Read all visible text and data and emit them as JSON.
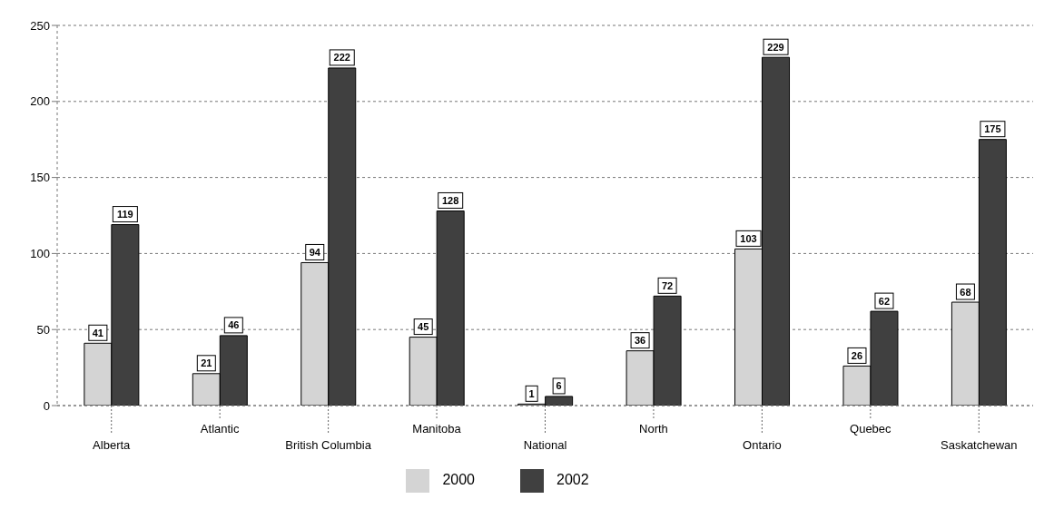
{
  "chart_data": {
    "type": "bar",
    "categories": [
      "Alberta",
      "Atlantic",
      "British Columbia",
      "Manitoba",
      "National",
      "North",
      "Ontario",
      "Quebec",
      "Saskatchewan"
    ],
    "series": [
      {
        "name": "2000",
        "color": "#d4d4d4",
        "values": [
          41,
          21,
          94,
          45,
          1,
          36,
          103,
          26,
          68
        ]
      },
      {
        "name": "2002",
        "color": "#404040",
        "values": [
          119,
          46,
          222,
          128,
          6,
          72,
          229,
          62,
          175
        ]
      }
    ],
    "ylim": [
      0,
      250
    ],
    "yticks": [
      0,
      50,
      100,
      150,
      200,
      250
    ],
    "grid": "y",
    "legend": "bottom",
    "data_labels": true
  }
}
